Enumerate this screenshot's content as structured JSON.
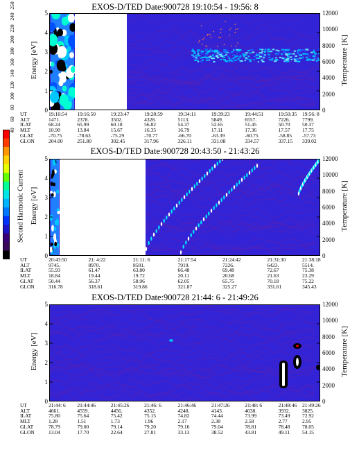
{
  "panels": [
    {
      "title": "EXOS-D/TED   Date:900728  19:10:54 - 19:56: 8",
      "ylabel": "Energy [eV]",
      "y2label": "Temperature [K]",
      "yticks": [
        "0",
        "1",
        "2",
        "3",
        "4",
        "5"
      ],
      "y2ticks": [
        "0",
        "2000",
        "4000",
        "6000",
        "8000",
        "10000",
        "12000"
      ],
      "eph_rows": [
        "UT",
        "ALT",
        "ILAT",
        "MLT",
        "GLAT",
        "GLON"
      ],
      "eph_cols": [
        [
          "19:10:54",
          "1471.",
          "68.24",
          "10.90",
          "-70.75",
          "204.00"
        ],
        [
          "19:16:50",
          "2378.",
          "65.99",
          "13.84",
          "-78.63",
          "251.80"
        ],
        [
          "19:23:47",
          "3502.",
          "60.18",
          "15.67",
          "-75.29",
          "302.45"
        ],
        [
          "19:28:59",
          "4328.",
          "56.82",
          "16.35",
          "-70.77",
          "317.96"
        ],
        [
          "19:34:11",
          "5113.",
          "54.37",
          "16.79",
          "-66.70",
          "326.11"
        ],
        [
          "19:39:23",
          "5849.",
          "52.65",
          "17.11",
          "-63.39",
          "331.08"
        ],
        [
          "19:44:51",
          "6557.",
          "51.45",
          "17.36",
          "-60.75",
          "334.57"
        ],
        [
          "19:50:35",
          "7226.",
          "50.70",
          "17.57",
          "-58.85",
          "337.15"
        ],
        [
          "19:56: 8",
          "7799.",
          "50.37",
          "17.75",
          "-57.73",
          "339.02"
        ]
      ]
    },
    {
      "title": "EXOS-D/TED   Date:900728  20:43:50 - 21:43:26",
      "ylabel": "Energy [eV]",
      "y2label": "Temperature [K]",
      "yticks": [
        "0",
        "1",
        "2",
        "3",
        "4",
        "5"
      ],
      "y2ticks": [
        "0",
        "2000",
        "4000",
        "6000",
        "8000",
        "10000",
        "12000"
      ],
      "eph_rows": [
        "UT",
        "ALT",
        "ILAT",
        "MLT",
        "GLAT",
        "GLON"
      ],
      "eph_cols": [
        [
          "20:43:50",
          "9745.",
          "55.93",
          "18.84",
          "50.44",
          "316.78"
        ],
        [
          "21: 4:22",
          "8970.",
          "61.47",
          "19.44",
          "56.37",
          "318.61"
        ],
        [
          "21:11: 6",
          "8501.",
          "63.80",
          "19.72",
          "58.96",
          "319.86"
        ],
        [
          "21:17:54",
          "7919.",
          "66.48",
          "20.11",
          "62.05",
          "321.87"
        ],
        [
          "21:24:42",
          "7226.",
          "69.48",
          "20.68",
          "65.75",
          "325.27"
        ],
        [
          "21:31:30",
          "6423.",
          "72.67",
          "21.63",
          "70.18",
          "331.61"
        ],
        [
          "21:38:18",
          "5514.",
          "75.38",
          "23.29",
          "75.22",
          "345.43"
        ]
      ]
    },
    {
      "title": "EXOS-D/TED   Date:900728  21:44: 6 - 21:49:26",
      "ylabel": "Energy [eV]",
      "y2label": "Temperature [K]",
      "yticks": [
        "0",
        "1",
        "2",
        "3",
        "4",
        "5"
      ],
      "y2ticks": [
        "0",
        "2000",
        "4000",
        "6000",
        "8000",
        "10000",
        "12000"
      ],
      "eph_rows": [
        "UT",
        "ALT",
        "ILAT",
        "MLT",
        "GLAT",
        "GLON"
      ],
      "eph_cols": [
        [
          "21:44: 6",
          "4661.",
          "75.80",
          "1.28",
          "78.79",
          "13.04"
        ],
        [
          "21:44:46",
          "4559.",
          "75.64",
          "1.51",
          "79.00",
          "17.70"
        ],
        [
          "21:45:26",
          "4456.",
          "75.42",
          "1.73",
          "79.14",
          "22.64"
        ],
        [
          "21:46: 6",
          "4352.",
          "75.15",
          "1.96",
          "79.20",
          "27.81"
        ],
        [
          "21:46:46",
          "4248.",
          "74.82",
          "2.17",
          "79.16",
          "33.13"
        ],
        [
          "21:47:26",
          "4143.",
          "74.44",
          "2.38",
          "79.04",
          "38.52"
        ],
        [
          "21:48: 6",
          "4038.",
          "73.99",
          "2.58",
          "78.81",
          "43.81"
        ],
        [
          "21:48:46",
          "3932.",
          "73.49",
          "2.77",
          "78.48",
          "49.11"
        ],
        [
          "21:49:26",
          "3825.",
          "72.92",
          "2.95",
          "78.05",
          "54.15"
        ]
      ]
    }
  ],
  "colorbar": {
    "label": "Second Harmonic Current",
    "ticks": [
      "40",
      "60",
      "80",
      "100",
      "120",
      "140",
      "160",
      "180",
      "200",
      "220",
      "240",
      "250"
    ],
    "colors": [
      "#000000",
      "#3a0a5a",
      "#3a0078",
      "#1c14c8",
      "#0032ff",
      "#0078ff",
      "#00b4ff",
      "#00e6e6",
      "#00ff96",
      "#64ff00",
      "#e6ff00",
      "#ffd200",
      "#ff9600",
      "#ff3c00",
      "#ff0000"
    ]
  },
  "chart_data": [
    {
      "type": "heatmap",
      "title": "EXOS-D/TED   Date:900728  19:10:54 - 19:56: 8",
      "xlabel": "",
      "ylabel": "Energy [eV]",
      "y2label": "Temperature [K]",
      "x": [
        "19:10:54",
        "19:16:50",
        "19:23:47",
        "19:28:59",
        "19:34:11",
        "19:39:23",
        "19:44:51",
        "19:50:35",
        "19:56: 8"
      ],
      "ylim": [
        0,
        5
      ],
      "y2lim": [
        0,
        12000
      ],
      "features": [
        {
          "kind": "broad-band",
          "x_range": [
            "19:10:54",
            "19:16:50"
          ],
          "energy_range": [
            0,
            5
          ],
          "level": "high"
        },
        {
          "kind": "no-data",
          "x_range": [
            "19:16:50",
            "19:23:47"
          ]
        },
        {
          "kind": "band",
          "x_range": [
            "19:34:11",
            "19:56: 8"
          ],
          "energy_center": 2.85,
          "energy_halfwidth": 0.3,
          "level": "high"
        }
      ]
    },
    {
      "type": "heatmap",
      "title": "EXOS-D/TED   Date:900728  20:43:50 - 21:43:26",
      "xlabel": "",
      "ylabel": "Energy [eV]",
      "y2label": "Temperature [K]",
      "x": [
        "20:43:50",
        "21: 4:22",
        "21:11: 6",
        "21:17:54",
        "21:24:42",
        "21:31:30",
        "21:38:18"
      ],
      "ylim": [
        0,
        5
      ],
      "y2lim": [
        0,
        12000
      ],
      "features": [
        {
          "kind": "broad-band",
          "x_range": [
            "20:43:50",
            "20:47:00"
          ],
          "energy_range": [
            0,
            5
          ],
          "level": "high"
        },
        {
          "kind": "no-data",
          "x_range": [
            "20:47:00",
            "21: 4:22"
          ]
        },
        {
          "kind": "rising-trace",
          "from": [
            "21: 4:22",
            0.3
          ],
          "to": [
            "21:17:54",
            5.0
          ]
        },
        {
          "kind": "rising-trace",
          "from": [
            "21:17:54",
            0.2
          ],
          "to": [
            "21:27:00",
            4.7
          ]
        },
        {
          "kind": "rising-trace",
          "from": [
            "21:38:18",
            3.2
          ],
          "to": [
            "21:43:26",
            5.0
          ]
        }
      ]
    },
    {
      "type": "heatmap",
      "title": "EXOS-D/TED   Date:900728  21:44: 6 - 21:49:26",
      "xlabel": "",
      "ylabel": "Energy [eV]",
      "y2label": "Temperature [K]",
      "x": [
        "21:44: 6",
        "21:44:46",
        "21:45:26",
        "21:46: 6",
        "21:46:46",
        "21:47:26",
        "21:48: 6",
        "21:48:46",
        "21:49:26"
      ],
      "ylim": [
        0,
        5
      ],
      "y2lim": [
        0,
        12000
      ],
      "features": [
        {
          "kind": "spot",
          "x": "21:46: 6",
          "energy": 3.15,
          "level": "medium"
        },
        {
          "kind": "column",
          "x": "21:48:46",
          "energy_range": [
            0.6,
            2.1
          ],
          "level": "high"
        },
        {
          "kind": "spot",
          "x": "21:48:56",
          "energy": 2.1,
          "level": "high"
        },
        {
          "kind": "spot",
          "x": "21:48:56",
          "energy": 3.05,
          "level": "high"
        },
        {
          "kind": "spot",
          "x": "21:49:26",
          "energy": 1.75,
          "level": "high"
        }
      ]
    }
  ]
}
